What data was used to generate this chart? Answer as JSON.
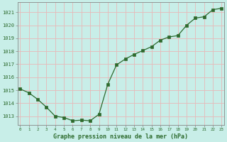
{
  "x": [
    0,
    1,
    2,
    3,
    4,
    5,
    6,
    7,
    8,
    9,
    10,
    11,
    12,
    13,
    14,
    15,
    16,
    17,
    18,
    19,
    20,
    21,
    22,
    23
  ],
  "y": [
    1015.1,
    1014.8,
    1014.3,
    1013.7,
    1013.0,
    1012.9,
    1012.65,
    1012.7,
    1012.65,
    1013.15,
    1015.45,
    1016.95,
    1017.4,
    1017.75,
    1018.05,
    1018.35,
    1018.85,
    1019.1,
    1019.2,
    1020.0,
    1020.55,
    1020.65,
    1021.2,
    1021.3
  ],
  "line_color": "#2d6a2d",
  "marker_color": "#2d6a2d",
  "bg_color": "#c8eee8",
  "grid_color": "#e8b8b8",
  "xlabel": "Graphe pression niveau de la mer (hPa)",
  "xlabel_color": "#2d6a2d",
  "ytick_labels": [
    "1013",
    "1014",
    "1015",
    "1016",
    "1017",
    "1018",
    "1019",
    "1020",
    "1021"
  ],
  "yticks": [
    1013,
    1014,
    1015,
    1016,
    1017,
    1018,
    1019,
    1020,
    1021
  ],
  "xtick_labels": [
    "0",
    "1",
    "2",
    "3",
    "4",
    "5",
    "6",
    "7",
    "8",
    "9",
    "1011",
    "1213",
    "1415",
    "1617",
    "1819",
    "2021",
    "2223"
  ],
  "ylim": [
    1012.35,
    1021.75
  ],
  "xlim": [
    -0.3,
    23.3
  ],
  "tick_color": "#2d6a2d",
  "spine_color": "#aaaaaa",
  "axis_line_color": "#888888"
}
